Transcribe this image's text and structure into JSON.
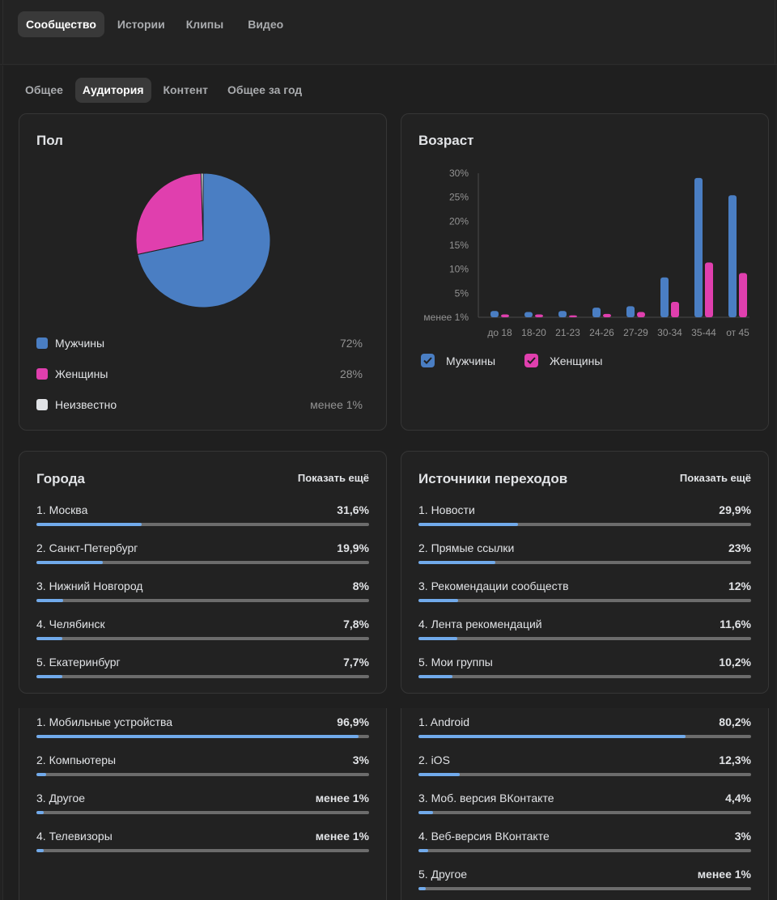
{
  "nav": {
    "main_tabs": [
      "Сообщество",
      "Истории",
      "Клипы",
      "Видео"
    ],
    "sub_tabs": [
      "Общее",
      "Аудитория",
      "Контент",
      "Общее за год"
    ]
  },
  "gender": {
    "title": "Пол",
    "legend": [
      {
        "label": "Мужчины",
        "value": "72%",
        "color": "#4a7ec3"
      },
      {
        "label": "Женщины",
        "value": "28%",
        "color": "#e03fae"
      },
      {
        "label": "Неизвестно",
        "value": "менее 1%",
        "color": "#e1e3e6"
      }
    ]
  },
  "age": {
    "title": "Возраст",
    "legend": [
      {
        "label": "Мужчины",
        "color": "#4a7ec3"
      },
      {
        "label": "Женщины",
        "color": "#e03fae"
      }
    ]
  },
  "cities": {
    "title": "Города",
    "show_more": "Показать ещё",
    "items": [
      {
        "label": "1. Москва",
        "value": "31,6%",
        "fraction": 0.316
      },
      {
        "label": "2. Санкт-Петербург",
        "value": "19,9%",
        "fraction": 0.199
      },
      {
        "label": "3. Нижний Новгород",
        "value": "8%",
        "fraction": 0.08
      },
      {
        "label": "4. Челябинск",
        "value": "7,8%",
        "fraction": 0.078
      },
      {
        "label": "5. Екатеринбург",
        "value": "7,7%",
        "fraction": 0.077
      }
    ]
  },
  "sources": {
    "title": "Источники переходов",
    "show_more": "Показать ещё",
    "items": [
      {
        "label": "1. Новости",
        "value": "29,9%",
        "fraction": 0.299
      },
      {
        "label": "2. Прямые ссылки",
        "value": "23%",
        "fraction": 0.23
      },
      {
        "label": "3. Рекомендации сообществ",
        "value": "12%",
        "fraction": 0.12
      },
      {
        "label": "4. Лента рекомендаций",
        "value": "11,6%",
        "fraction": 0.116
      },
      {
        "label": "5. Мои группы",
        "value": "10,2%",
        "fraction": 0.102
      }
    ]
  },
  "devices": {
    "items": [
      {
        "label": "1. Мобильные устройства",
        "value": "96,9%",
        "fraction": 0.969
      },
      {
        "label": "2. Компьютеры",
        "value": "3%",
        "fraction": 0.03
      },
      {
        "label": "3. Другое",
        "value": "менее 1%",
        "fraction": 0.008
      },
      {
        "label": "4. Телевизоры",
        "value": "менее 1%",
        "fraction": 0.008
      }
    ]
  },
  "platforms": {
    "items": [
      {
        "label": "1. Android",
        "value": "80,2%",
        "fraction": 0.802
      },
      {
        "label": "2. iOS",
        "value": "12,3%",
        "fraction": 0.123
      },
      {
        "label": "3. Моб. версия ВКонтакте",
        "value": "4,4%",
        "fraction": 0.044
      },
      {
        "label": "4. Веб-версия ВКонтакте",
        "value": "3%",
        "fraction": 0.03
      },
      {
        "label": "5. Другое",
        "value": "менее 1%",
        "fraction": 0.008
      }
    ]
  },
  "chart_data": [
    {
      "type": "pie",
      "title": "Пол",
      "categories": [
        "Мужчины",
        "Женщины",
        "Неизвестно"
      ],
      "values": [
        72,
        28,
        0.5
      ],
      "colors": [
        "#4a7ec3",
        "#e03fae",
        "#e1e3e6"
      ]
    },
    {
      "type": "bar",
      "title": "Возраст",
      "categories": [
        "до 18",
        "18-20",
        "21-23",
        "24-26",
        "27-29",
        "30-34",
        "35-44",
        "от 45"
      ],
      "series": [
        {
          "name": "Мужчины",
          "color": "#4a7ec3",
          "values": [
            1.3,
            1.1,
            1.3,
            2.0,
            2.3,
            8.3,
            29.0,
            25.4
          ]
        },
        {
          "name": "Женщины",
          "color": "#e03fae",
          "values": [
            0.6,
            0.6,
            0.4,
            0.7,
            1.1,
            3.2,
            11.4,
            9.2
          ]
        }
      ],
      "y_ticks": [
        "менее 1%",
        "5%",
        "10%",
        "15%",
        "20%",
        "25%",
        "30%"
      ],
      "ylim": [
        0,
        30
      ],
      "grid": false,
      "legend": "bottom-left"
    }
  ]
}
